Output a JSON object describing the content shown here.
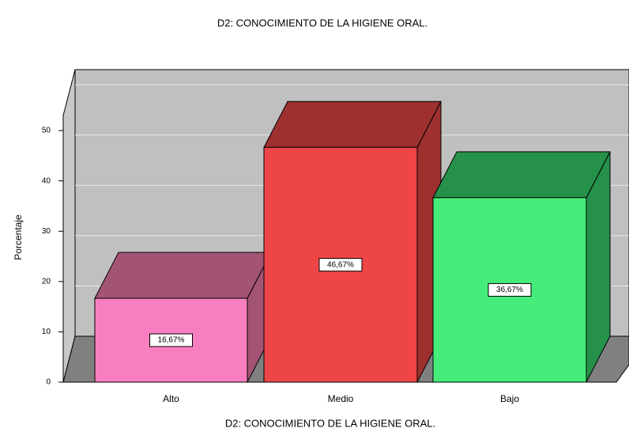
{
  "chart_data": {
    "type": "bar3d",
    "title": "D2: CONOCIMIENTO DE LA HIGIENE ORAL.",
    "x_label": "D2: CONOCIMIENTO DE LA HIGIENE ORAL.",
    "y_label": "Porcentaje",
    "categories": [
      "Alto",
      "Medio",
      "Bajo"
    ],
    "values": [
      16.67,
      46.67,
      36.67
    ],
    "value_labels": [
      "16,67%",
      "46,67%",
      "36,67%"
    ],
    "colors": [
      "#f77fc0",
      "#ee4646",
      "#46ec7a"
    ],
    "shade_colors": [
      "#a35474",
      "#9e3030",
      "#25914a"
    ],
    "ylim": [
      0,
      53
    ],
    "yticks": [
      0,
      10,
      20,
      30,
      40,
      50
    ],
    "grid": true
  }
}
